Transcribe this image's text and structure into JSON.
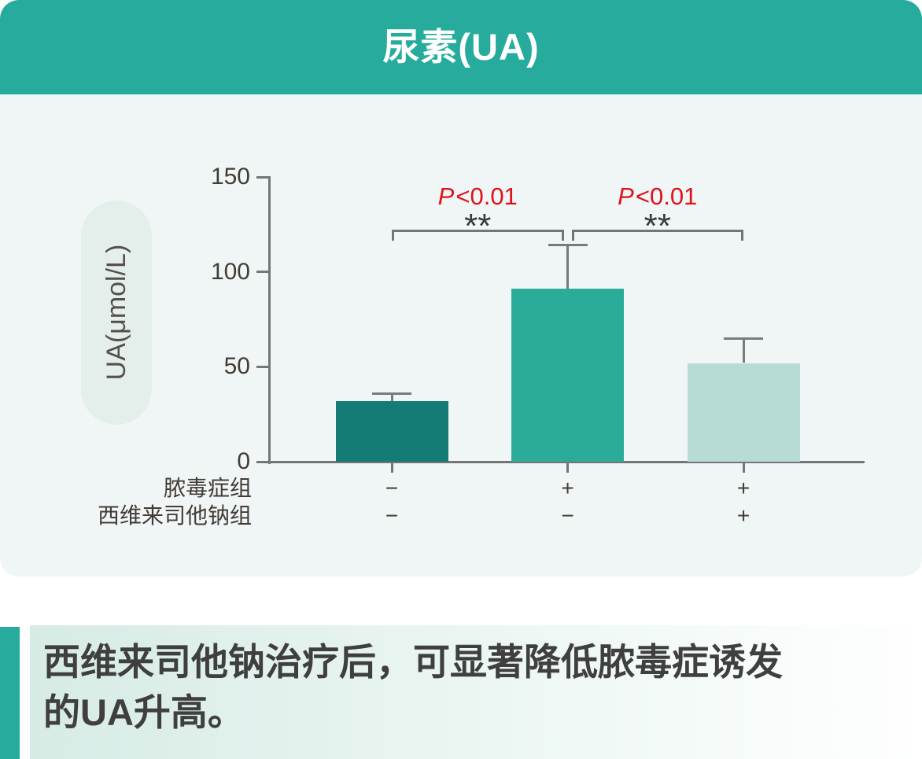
{
  "header": {
    "title": "尿素(UA)",
    "bg_color": "#27AB9D",
    "text_color": "#FFFFFF"
  },
  "chart_data": {
    "type": "bar",
    "title": "尿素(UA)",
    "ylabel": "UA(μmol/L)",
    "ylim": [
      0,
      150
    ],
    "yticks": [
      0,
      50,
      100,
      150
    ],
    "grid": false,
    "legend": "none",
    "values": [
      32,
      91,
      52
    ],
    "errors": [
      4,
      23,
      13
    ],
    "bar_colors": [
      "#147C75",
      "#2BAC9B",
      "#B7DCD5"
    ],
    "group_rows": [
      {
        "label": "脓毒症组",
        "symbols": [
          "−",
          "+",
          "+"
        ]
      },
      {
        "label": "西维来司他钠组",
        "symbols": [
          "−",
          "−",
          "+"
        ]
      }
    ],
    "significance": [
      {
        "between": [
          0,
          1
        ],
        "stars": "**",
        "p_var": "P",
        "p_value": "<0.01",
        "p_color": "#E0121A"
      },
      {
        "between": [
          1,
          2
        ],
        "stars": "**",
        "p_var": "P",
        "p_value": "<0.01",
        "p_color": "#E0121A"
      }
    ],
    "axis_color": "#757575",
    "panel_bg": "#F0F6F6"
  },
  "caption": {
    "lines": [
      "西维来司他钠治疗后，可显著降低脓毒症诱发",
      "的UA升高。"
    ],
    "accent_color": "#27AB9D",
    "text_color": "#3F3F3F"
  }
}
